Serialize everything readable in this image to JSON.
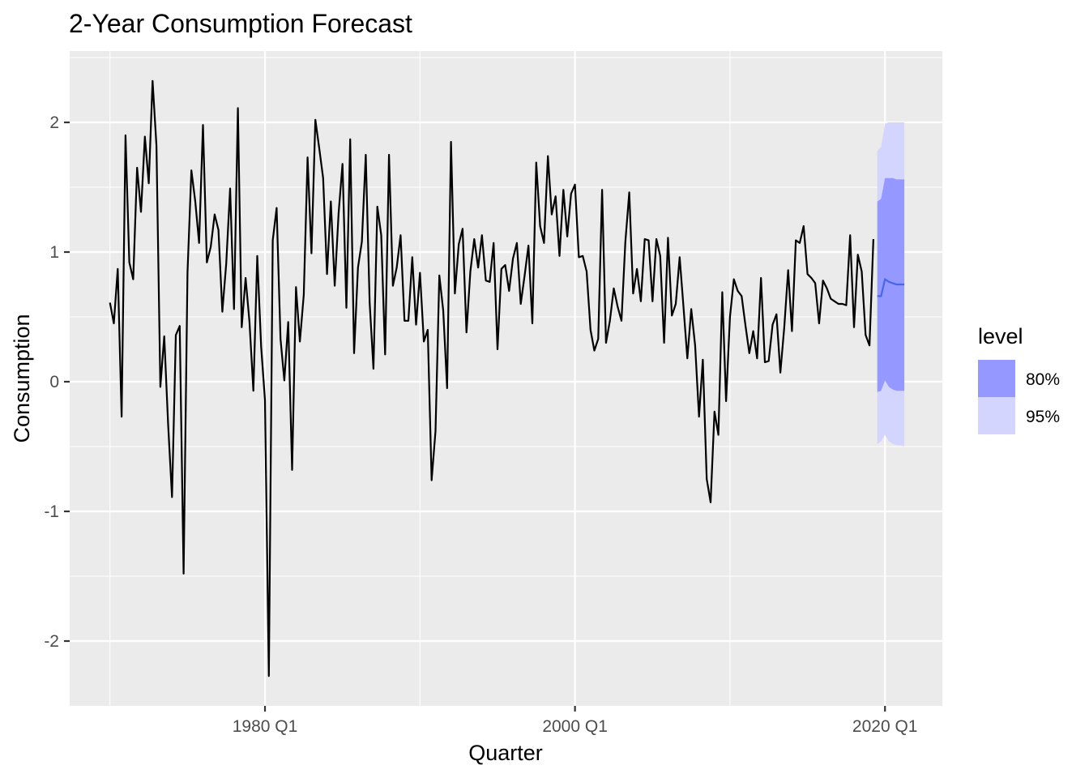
{
  "chart_data": {
    "type": "line",
    "title": "2-Year Consumption Forecast",
    "xlabel": "Quarter",
    "ylabel": "Consumption",
    "x_ticks": [
      "1980 Q1",
      "2000 Q1",
      "2020 Q1"
    ],
    "y_ticks": [
      "-2",
      "-1",
      "0",
      "1",
      "2"
    ],
    "xlim": [
      1967.4,
      2023.7
    ],
    "ylim": [
      -2.5,
      2.55
    ],
    "grid": true,
    "legend": {
      "title": "level",
      "position": "right",
      "entries": [
        {
          "label": "80%",
          "color": "#9599ff"
        },
        {
          "label": "95%",
          "color": "#d4d5fe"
        }
      ]
    },
    "colors": {
      "panel": "#ebebeb",
      "grid_major": "#ffffff",
      "series": "#000000",
      "forecast_mean": "#4a66e8",
      "band_80": "#9599ff",
      "band_95": "#d4d5fe"
    },
    "series": [
      {
        "start": 1970.0,
        "step": 0.25,
        "values": [
          0.61,
          0.45,
          0.87,
          -0.27,
          1.9,
          0.92,
          0.79,
          1.65,
          1.31,
          1.89,
          1.53,
          2.32,
          1.82,
          -0.04,
          0.35,
          -0.33,
          -0.89,
          0.36,
          0.43,
          -1.48,
          0.84,
          1.63,
          1.39,
          1.07,
          1.98,
          0.92,
          1.04,
          1.29,
          1.17,
          0.54,
          0.91,
          1.49,
          0.56,
          2.11,
          0.42,
          0.8,
          0.46,
          -0.07,
          0.97,
          0.27,
          -0.14,
          -2.27,
          1.09,
          1.34,
          0.33,
          0.01,
          0.46,
          -0.68,
          0.73,
          0.31,
          0.67,
          1.73,
          0.99,
          2.02,
          1.8,
          1.57,
          0.83,
          1.39,
          0.74,
          1.3,
          1.68,
          0.57,
          1.87,
          0.22,
          0.88,
          1.08,
          1.75,
          0.61,
          0.1,
          1.35,
          1.13,
          0.21,
          1.75,
          0.74,
          0.88,
          1.13,
          0.47,
          0.47,
          0.96,
          0.44,
          0.84,
          0.31,
          0.4,
          -0.76,
          -0.38,
          0.82,
          0.55,
          -0.05,
          1.85,
          0.68,
          1.06,
          1.18,
          0.38,
          0.85,
          1.1,
          0.88,
          1.13,
          0.78,
          0.77,
          1.07,
          0.25,
          0.87,
          0.9,
          0.7,
          0.95,
          1.07,
          0.6,
          0.82,
          1.05,
          0.45,
          1.69,
          1.2,
          1.07,
          1.74,
          1.29,
          1.43,
          0.97,
          1.48,
          1.12,
          1.45,
          1.52,
          0.96,
          0.97,
          0.85,
          0.4,
          0.24,
          0.33,
          1.48,
          0.3,
          0.47,
          0.72,
          0.58,
          0.47,
          1.08,
          1.46,
          0.68,
          0.87,
          0.62,
          1.1,
          1.09,
          0.62,
          1.1,
          0.97,
          0.3,
          1.11,
          0.51,
          0.6,
          0.96,
          0.58,
          0.18,
          0.56,
          0.28,
          -0.27,
          0.17,
          -0.75,
          -0.93,
          -0.23,
          -0.41,
          0.69,
          -0.15,
          0.5,
          0.79,
          0.7,
          0.66,
          0.43,
          0.22,
          0.39,
          0.18,
          0.8,
          0.15,
          0.16,
          0.44,
          0.52,
          0.07,
          0.42,
          0.86,
          0.39,
          1.09,
          1.07,
          1.2,
          0.83,
          0.8,
          0.76,
          0.45,
          0.78,
          0.72,
          0.64,
          0.62,
          0.6,
          0.6,
          0.59,
          1.13,
          0.42,
          0.98,
          0.85,
          0.36,
          0.28,
          1.1
        ]
      }
    ],
    "forecast": {
      "x": [
        2019.5,
        2019.75,
        2020.0,
        2020.25,
        2020.5,
        2020.75,
        2021.0,
        2021.25
      ],
      "mean": [
        0.66,
        0.66,
        0.79,
        0.77,
        0.76,
        0.75,
        0.75,
        0.75
      ],
      "lo80": [
        -0.08,
        -0.07,
        0.01,
        -0.04,
        -0.06,
        -0.07,
        -0.07,
        -0.07
      ],
      "hi80": [
        1.39,
        1.41,
        1.57,
        1.57,
        1.57,
        1.56,
        1.56,
        1.56
      ],
      "lo95": [
        -0.48,
        -0.46,
        -0.41,
        -0.46,
        -0.48,
        -0.49,
        -0.49,
        -0.5
      ],
      "hi95": [
        1.78,
        1.81,
        1.99,
        2.0,
        2.0,
        2.0,
        2.0,
        2.0
      ]
    }
  }
}
